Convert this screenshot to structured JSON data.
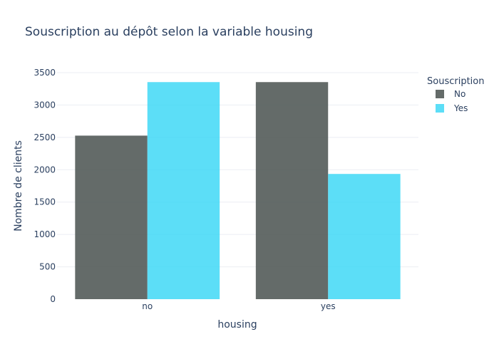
{
  "chart_data": {
    "type": "bar",
    "title": "Souscription au dépôt selon la variable housing",
    "xlabel": "housing",
    "ylabel": "Nombre de clients",
    "categories": [
      "no",
      "yes"
    ],
    "series": [
      {
        "name": "No",
        "values": [
          2527,
          3354
        ],
        "color": "#4f5654"
      },
      {
        "name": "Yes",
        "values": [
          3354,
          1935
        ],
        "color": "#33d6f5"
      }
    ],
    "ylim": [
      0,
      3500
    ],
    "yticks": [
      0,
      500,
      1000,
      1500,
      2000,
      2500,
      3000,
      3500
    ],
    "legend": {
      "title": "Souscription",
      "position": "top-right"
    },
    "grid": true
  }
}
